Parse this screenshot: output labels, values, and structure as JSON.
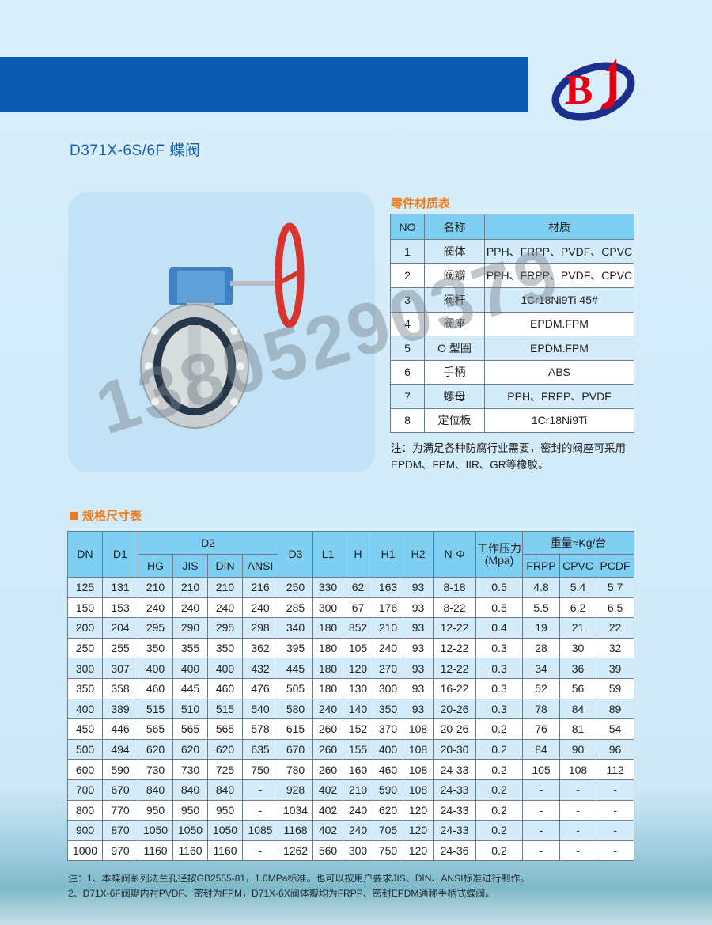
{
  "header": {
    "title": "D371X-6S/6F 蝶阀",
    "logo_text": "BJ",
    "colors": {
      "banner": "#0b59b1",
      "logo_red": "#e60012",
      "logo_blue": "#1b2f8f",
      "accent": "#f07a1c",
      "table_header": "#7fcff3"
    }
  },
  "watermark": "13805290379",
  "materials": {
    "title": "零件材质表",
    "headers": [
      "NO",
      "名称",
      "材质"
    ],
    "rows": [
      [
        "1",
        "阀体",
        "PPH、FRPP、PVDF、CPVC"
      ],
      [
        "2",
        "阀瓣",
        "PPH、FRPP、PVDF、CPVC"
      ],
      [
        "3",
        "阀杆",
        "1Cr18Ni9Ti 45#"
      ],
      [
        "4",
        "阀座",
        "EPDM.FPM"
      ],
      [
        "5",
        "O 型圈",
        "EPDM.FPM"
      ],
      [
        "6",
        "手柄",
        "ABS"
      ],
      [
        "7",
        "螺母",
        "PPH、FRPP、PVDF"
      ],
      [
        "8",
        "定位板",
        "1Cr18Ni9Ti"
      ]
    ],
    "note": "注：为满足各种防腐行业需要，密封的阀座可采用EPDM、FPM、IIR、GR等橡胶。"
  },
  "spec": {
    "title": "规格尺寸表",
    "headers": {
      "dn": "DN",
      "d1": "D1",
      "d2": "D2",
      "d2_sub": [
        "HG",
        "JIS",
        "DIN",
        "ANSI"
      ],
      "d3": "D3",
      "l1": "L1",
      "h": "H",
      "h1": "H1",
      "h2": "H2",
      "n": "N-Φ",
      "pressure": "工作压力(Mpa)",
      "weight": "重量≈Kg/台",
      "weight_sub": [
        "FRPP",
        "CPVC",
        "PCDF"
      ]
    },
    "rows": [
      [
        "125",
        "131",
        "210",
        "210",
        "210",
        "216",
        "250",
        "330",
        "62",
        "163",
        "93",
        "8-18",
        "0.5",
        "4.8",
        "5.4",
        "5.7"
      ],
      [
        "150",
        "153",
        "240",
        "240",
        "240",
        "240",
        "285",
        "300",
        "67",
        "176",
        "93",
        "8-22",
        "0.5",
        "5.5",
        "6.2",
        "6.5"
      ],
      [
        "200",
        "204",
        "295",
        "290",
        "295",
        "298",
        "340",
        "180",
        "852",
        "210",
        "93",
        "12-22",
        "0.4",
        "19",
        "21",
        "22"
      ],
      [
        "250",
        "255",
        "350",
        "355",
        "350",
        "362",
        "395",
        "180",
        "105",
        "240",
        "93",
        "12-22",
        "0.3",
        "28",
        "30",
        "32"
      ],
      [
        "300",
        "307",
        "400",
        "400",
        "400",
        "432",
        "445",
        "180",
        "120",
        "270",
        "93",
        "12-22",
        "0.3",
        "34",
        "36",
        "39"
      ],
      [
        "350",
        "358",
        "460",
        "445",
        "460",
        "476",
        "505",
        "180",
        "130",
        "300",
        "93",
        "16-22",
        "0.3",
        "52",
        "56",
        "59"
      ],
      [
        "400",
        "389",
        "515",
        "510",
        "515",
        "540",
        "580",
        "240",
        "140",
        "350",
        "93",
        "20-26",
        "0.3",
        "78",
        "84",
        "89"
      ],
      [
        "450",
        "446",
        "565",
        "565",
        "565",
        "578",
        "615",
        "260",
        "152",
        "370",
        "108",
        "20-26",
        "0.2",
        "76",
        "81",
        "54"
      ],
      [
        "500",
        "494",
        "620",
        "620",
        "620",
        "635",
        "670",
        "260",
        "155",
        "400",
        "108",
        "20-30",
        "0.2",
        "84",
        "90",
        "96"
      ],
      [
        "600",
        "590",
        "730",
        "730",
        "725",
        "750",
        "780",
        "260",
        "160",
        "460",
        "108",
        "24-33",
        "0.2",
        "105",
        "108",
        "112"
      ],
      [
        "700",
        "670",
        "840",
        "840",
        "840",
        "-",
        "928",
        "402",
        "210",
        "590",
        "108",
        "24-33",
        "0.2",
        "-",
        "-",
        "-"
      ],
      [
        "800",
        "770",
        "950",
        "950",
        "950",
        "-",
        "1034",
        "402",
        "240",
        "620",
        "120",
        "24-33",
        "0.2",
        "-",
        "-",
        "-"
      ],
      [
        "900",
        "870",
        "1050",
        "1050",
        "1050",
        "1085",
        "1168",
        "402",
        "240",
        "705",
        "120",
        "24-33",
        "0.2",
        "-",
        "-",
        "-"
      ],
      [
        "1000",
        "970",
        "1160",
        "1160",
        "1160",
        "-",
        "1262",
        "560",
        "300",
        "750",
        "120",
        "24-36",
        "0.2",
        "-",
        "-",
        "-"
      ]
    ],
    "notes": [
      "注：1、本蝶阀系列法兰孔径按GB2555-81，1.0MPa标准。也可以按用户要求JIS、DIN、ANSI标准进行制作。",
      "2、D71X-6F阀瓣内衬PVDF、密封为FPM，D71X-6X阀体瓣均为FRPP、密封EPDM通称手柄式蝶阀。"
    ]
  }
}
